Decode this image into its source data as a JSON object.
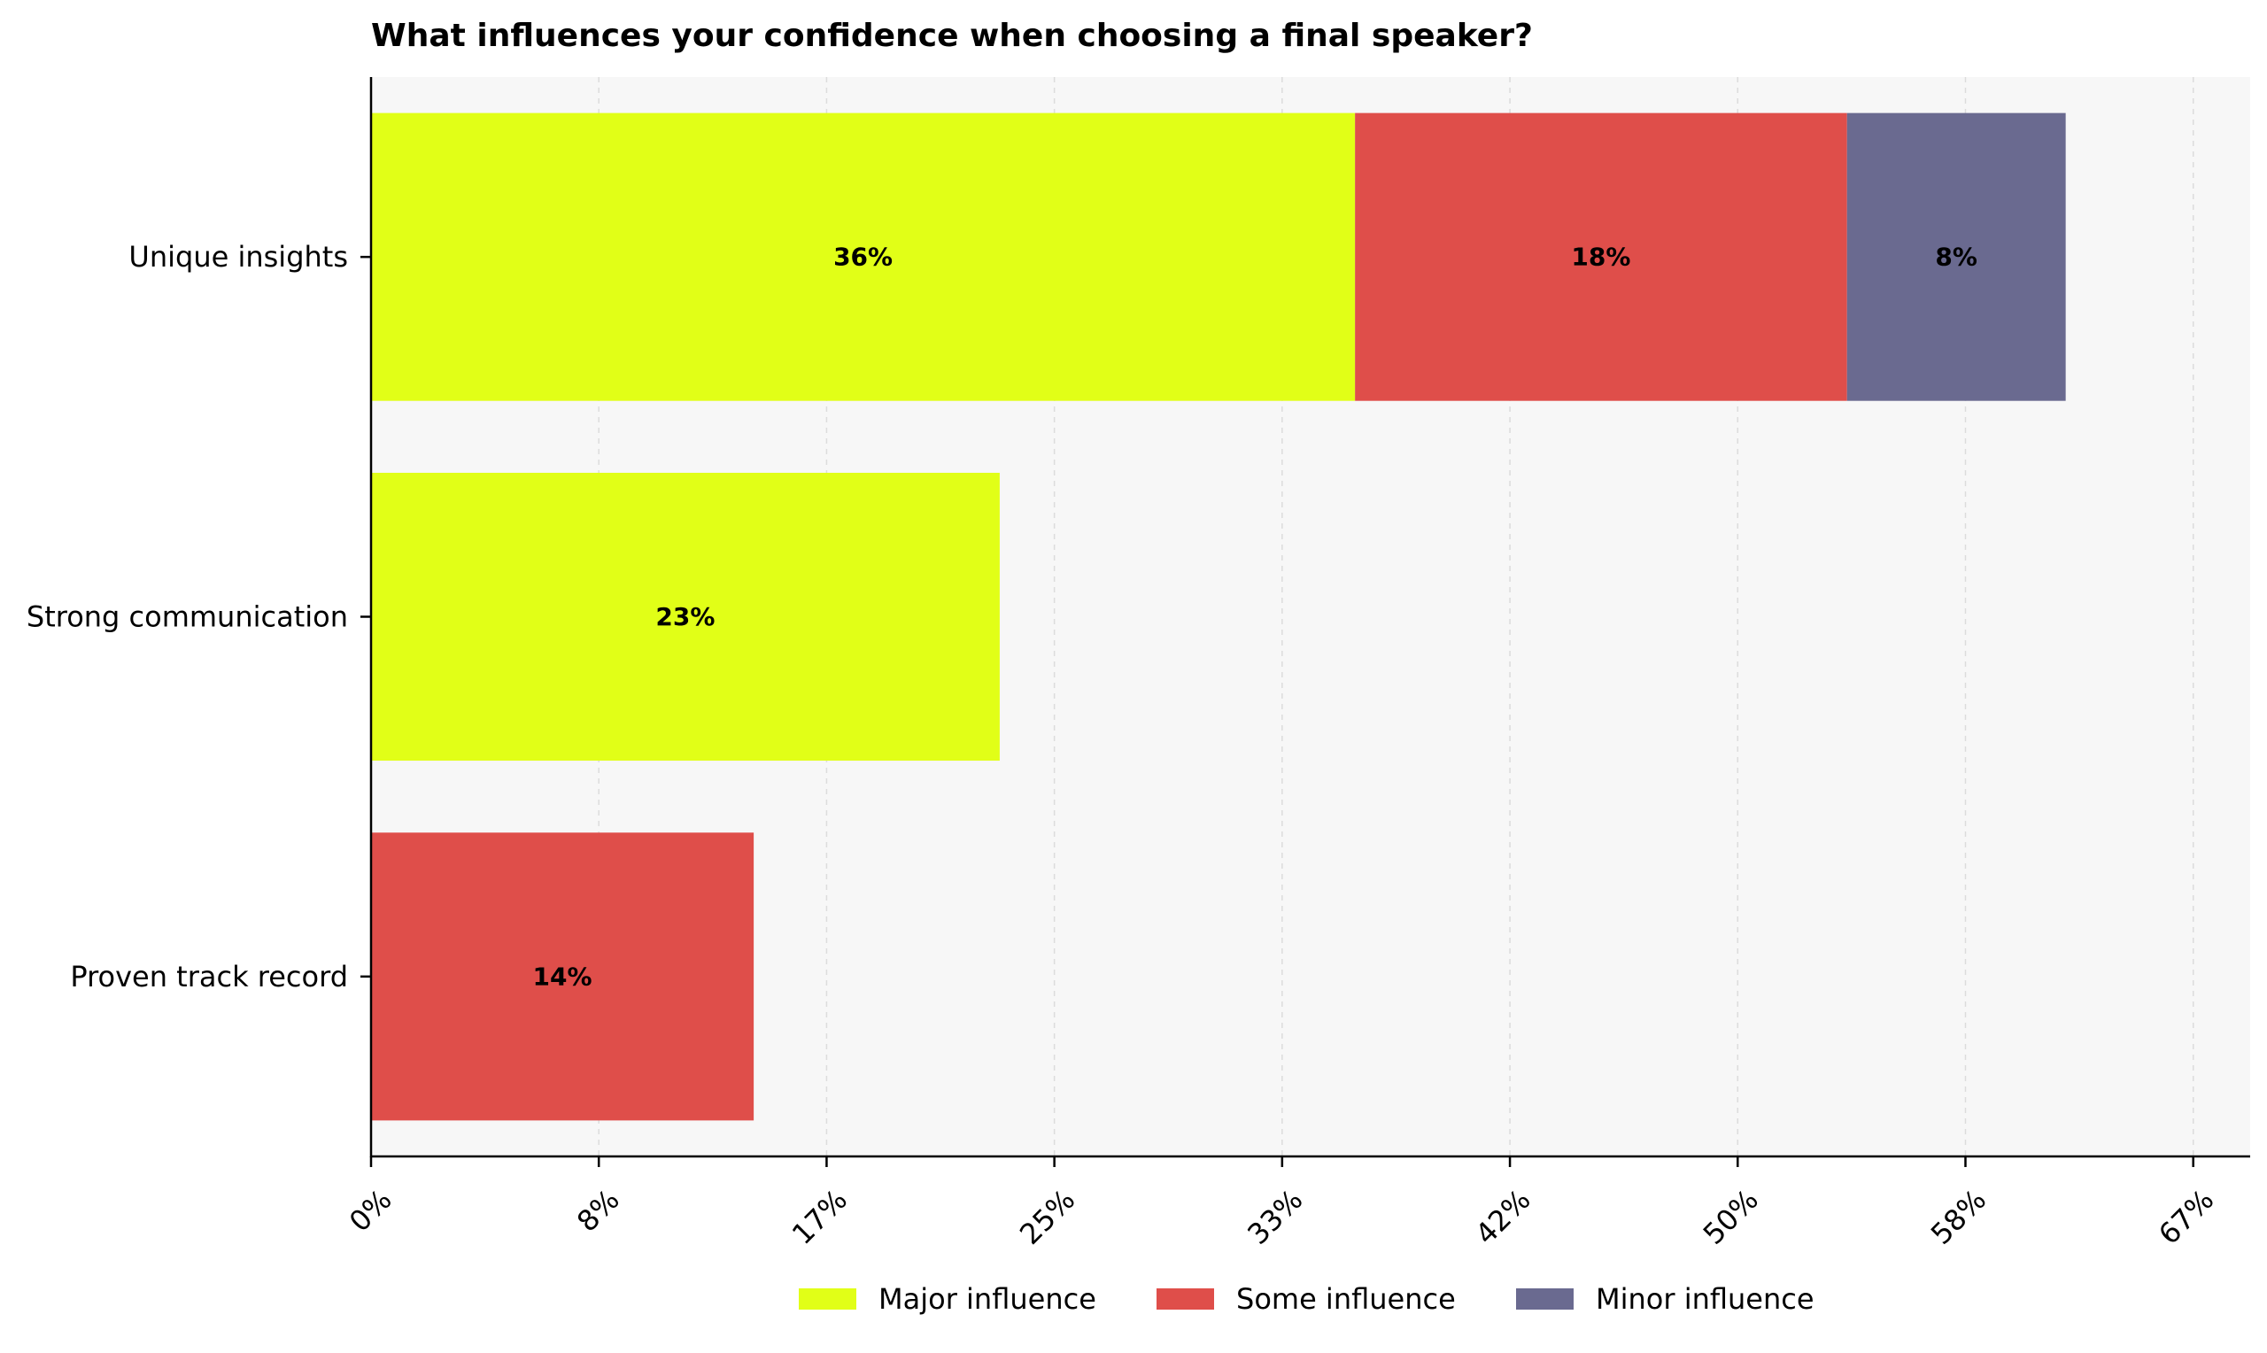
{
  "chart_data": {
    "type": "bar",
    "orientation": "horizontal",
    "stacked": true,
    "title": "What influences your confidence when choosing a final speaker?",
    "xlabel": "",
    "ylabel": "",
    "categories": [
      "Unique insights",
      "Strong communication",
      "Proven track record"
    ],
    "series": [
      {
        "name": "Major influence",
        "color": "#e1ff17",
        "values": [
          36,
          23,
          0
        ]
      },
      {
        "name": "Some influence",
        "color": "#df4e4a",
        "values": [
          18,
          0,
          14
        ]
      },
      {
        "name": "Minor influence",
        "color": "#6a6a90",
        "values": [
          8,
          0,
          0
        ]
      }
    ],
    "value_suffix": "%",
    "xlim": [
      0,
      68.75
    ],
    "xticks": [
      0,
      8.333,
      16.667,
      25,
      33.333,
      41.667,
      50,
      58.333,
      66.667
    ],
    "xtick_labels": [
      "0%",
      "8%",
      "17%",
      "25%",
      "33%",
      "42%",
      "50%",
      "58%",
      "67%"
    ],
    "grid": "vertical dashed",
    "legend_position": "bottom-center",
    "plot_background": "#f7f7f7"
  }
}
